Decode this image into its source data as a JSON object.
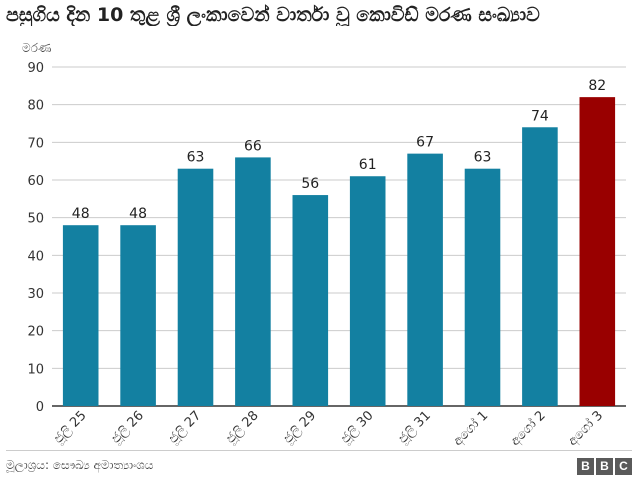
{
  "chart_data": {
    "type": "bar",
    "title": "පසුගිය දින 10 තුළ ශ්‍රී ලංකාවෙන් වාර්තා වූ කොවිඩ් මරණ සංඛ්‍යාව",
    "ylabel": "මරණ",
    "xlabel": "",
    "categories": [
      "ජූලි 25",
      "ජූලි 26",
      "ජූලි 27",
      "ජූලි 28",
      "ජූලි 29",
      "ජූලි 30",
      "ජූලි 31",
      "අගෝ 1",
      "අගෝ 2",
      "අගෝ 3"
    ],
    "values": [
      48,
      48,
      63,
      66,
      56,
      61,
      67,
      63,
      74,
      82
    ],
    "ylim": [
      0,
      90
    ],
    "yticks": [
      0,
      10,
      20,
      30,
      40,
      50,
      60,
      70,
      80,
      90
    ],
    "grid": true,
    "colors": {
      "bar": "#1380A1",
      "highlight": "#990000",
      "grid": "#cbcbcb",
      "axis": "#333333"
    },
    "highlight_index": 9
  },
  "footer": {
    "source": "මූලාශ්‍රය: සෞඛ්‍ය අමාත්‍යාංශය",
    "logo_letters": [
      "B",
      "B",
      "C"
    ]
  }
}
